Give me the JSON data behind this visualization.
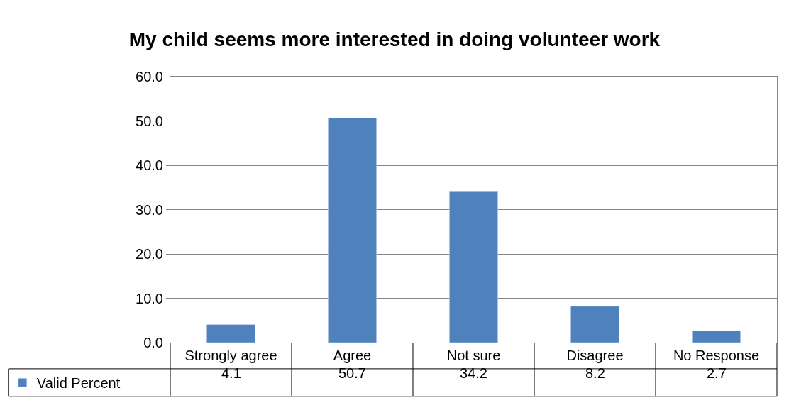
{
  "chart_data": {
    "type": "bar",
    "title": "My child seems more interested in doing volunteer work",
    "categories": [
      "Strongly agree",
      "Agree",
      "Not sure",
      "Disagree",
      "No Response"
    ],
    "series": [
      {
        "name": "Valid Percent",
        "color": "#4f81bd",
        "values": [
          4.1,
          50.7,
          34.2,
          8.2,
          2.7
        ]
      }
    ],
    "ylim": [
      0,
      60
    ],
    "yticks": [
      {
        "value": 0,
        "label": "0.0"
      },
      {
        "value": 10,
        "label": "10.0"
      },
      {
        "value": 20,
        "label": "20.0"
      },
      {
        "value": 30,
        "label": "30.0"
      },
      {
        "value": 40,
        "label": "40.0"
      },
      {
        "value": 50,
        "label": "50.0"
      },
      {
        "value": 60,
        "label": "60.0"
      }
    ],
    "grid": "y",
    "legend": "bottom left",
    "data_labels": true
  }
}
